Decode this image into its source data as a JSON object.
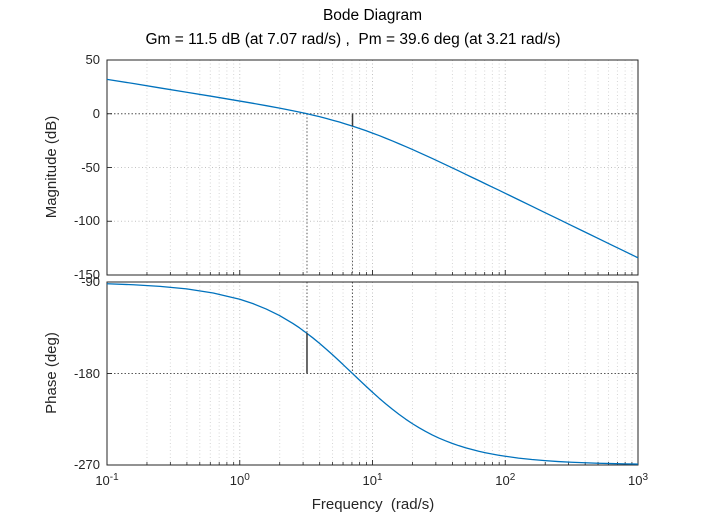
{
  "header": {
    "title": "Bode Diagram",
    "subtitle": "Gm = 11.5 dB (at 7.07 rad/s) ,  Pm = 39.6 deg (at 3.21 rad/s)"
  },
  "margins": {
    "gain_margin_db": 11.5,
    "gain_margin_freq_rad_s": 7.07,
    "phase_margin_deg": 39.6,
    "phase_margin_freq_rad_s": 3.21
  },
  "colors": {
    "line": "#0072BD",
    "grid_minor": "#d6d6d6",
    "grid_major": "#c2c2c2",
    "margin_dotted": "#5a5a5a",
    "margin_solid": "#3a3a3a",
    "axis": "#262626",
    "text": "#262626"
  },
  "x_axis": {
    "tick_base": "10",
    "tick_exponents": [
      -1,
      0,
      1,
      2,
      3
    ]
  },
  "chart_data": [
    {
      "type": "line",
      "name": "magnitude",
      "title": "Bode Diagram",
      "ylabel": "Magnitude (dB)",
      "x_scale": "log",
      "xlim": [
        0.1,
        1000
      ],
      "ylim": [
        -150,
        50
      ],
      "yticks": [
        50,
        0,
        -50,
        -100,
        -150
      ],
      "grid": true,
      "x": [
        0.1,
        0.158,
        0.251,
        0.398,
        0.631,
        1.0,
        1.259,
        1.585,
        1.995,
        2.512,
        2.818,
        3.162,
        3.548,
        3.981,
        4.467,
        5.012,
        5.623,
        6.31,
        7.07,
        7.943,
        8.913,
        10,
        11.22,
        12.59,
        14.13,
        15.85,
        17.78,
        19.95,
        22.39,
        25.12,
        28.18,
        31.62,
        35.48,
        39.81,
        44.67,
        50.12,
        56.23,
        63.1,
        70.79,
        79.43,
        89.13,
        100,
        125.9,
        158.5,
        199.5,
        251.2,
        316.2,
        398.1,
        501.2,
        631,
        794.3,
        1000
      ],
      "y": [
        32.0,
        28.1,
        24.0,
        20.0,
        16.0,
        11.8,
        9.7,
        7.5,
        5.2,
        2.8,
        1.5,
        0.2,
        -1.3,
        -2.7,
        -4.3,
        -6.0,
        -7.7,
        -9.6,
        -11.5,
        -13.6,
        -15.7,
        -18.0,
        -20.3,
        -22.8,
        -25.3,
        -27.9,
        -30.5,
        -33.2,
        -36.0,
        -38.8,
        -41.6,
        -44.5,
        -47.4,
        -50.3,
        -53.2,
        -56.2,
        -59.2,
        -62.1,
        -65.1,
        -68.1,
        -71.0,
        -74.0,
        -80.0,
        -86.0,
        -92.0,
        -98.0,
        -104.0,
        -110.0,
        -116.0,
        -122.0,
        -128.0,
        -134.0
      ]
    },
    {
      "type": "line",
      "name": "phase",
      "ylabel": "Phase (deg)",
      "xlabel": "Frequency  (rad/s)",
      "x_scale": "log",
      "xlim": [
        0.1,
        1000
      ],
      "ylim": [
        -270,
        -90
      ],
      "yticks": [
        -90,
        -180,
        -270
      ],
      "grid": true,
      "x": [
        0.1,
        0.158,
        0.251,
        0.398,
        0.631,
        1.0,
        1.259,
        1.585,
        1.995,
        2.512,
        2.818,
        3.162,
        3.548,
        3.981,
        4.467,
        5.012,
        5.623,
        6.31,
        7.07,
        7.943,
        8.913,
        10,
        11.22,
        12.59,
        14.13,
        15.85,
        17.78,
        19.95,
        22.39,
        25.12,
        28.18,
        31.62,
        35.48,
        39.81,
        44.67,
        50.12,
        56.23,
        63.1,
        70.79,
        79.43,
        89.13,
        100,
        125.9,
        158.5,
        199.5,
        251.2,
        316.2,
        398.1,
        501.2,
        631,
        794.3,
        1000
      ],
      "y": [
        -91.7,
        -92.7,
        -94.3,
        -96.8,
        -100.8,
        -107.0,
        -111.3,
        -116.6,
        -123.0,
        -130.8,
        -135.1,
        -139.9,
        -144.9,
        -150.2,
        -155.9,
        -161.7,
        -167.7,
        -173.9,
        -180.0,
        -186.3,
        -192.4,
        -198.4,
        -204.3,
        -209.9,
        -215.2,
        -220.2,
        -224.9,
        -229.3,
        -233.3,
        -237.0,
        -240.4,
        -243.5,
        -246.2,
        -248.7,
        -251.0,
        -253.0,
        -254.8,
        -256.5,
        -257.9,
        -259.2,
        -260.4,
        -261.4,
        -263.2,
        -264.6,
        -265.7,
        -266.6,
        -267.3,
        -267.8,
        -268.3,
        -268.6,
        -268.9,
        -269.1
      ]
    }
  ]
}
